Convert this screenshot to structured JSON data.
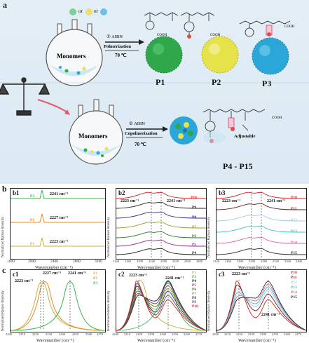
{
  "section_a": {
    "label": "a",
    "flask_label": "Monomers",
    "flask_label_2": "Monomers",
    "or_text_1": "or",
    "or_text_2": "or",
    "step1": {
      "line1": "① AIBN",
      "line2": "Polmerization",
      "temp": "70 ℃"
    },
    "step2": {
      "line1": "① AIBN",
      "line2": "Copolmerization",
      "temp": "70 ℃"
    },
    "products": [
      "P1",
      "P2",
      "P3"
    ],
    "copolymer_label": "P4 - P15",
    "adjustable": "Adjustable",
    "cooh": "COOH",
    "x_n": "n",
    "colors": {
      "p1": "#2ea84a",
      "p2": "#e6e24a",
      "p3": "#2aa7d8",
      "bg": "#dce9f3"
    }
  },
  "section_b": {
    "label": "b",
    "b1": {
      "title": "b1",
      "xlabel": "Wavenumber (cm⁻¹)",
      "ylabel": "Normalized Raman Intensity",
      "xticks": [
        "1600",
        "2000",
        "2400",
        "2800",
        "3200"
      ],
      "annotations": [
        "2241 cm⁻¹",
        "2227 cm⁻¹",
        "2223 cm⁻¹"
      ],
      "series": [
        {
          "name": "P3",
          "color": "#39b54a"
        },
        {
          "name": "P2",
          "color": "#e8882a"
        },
        {
          "name": "P1",
          "color": "#c8b040"
        }
      ]
    },
    "b2": {
      "title": "b2",
      "xlabel": "Wavenumber (cm⁻¹)",
      "ylabel": "Normalized Raman Intensity",
      "xticks": [
        "2120",
        "2160",
        "2200",
        "2240",
        "2280",
        "2320",
        "2360",
        "2400"
      ],
      "annotations": [
        "2223 cm⁻¹",
        "2241 cm⁻¹"
      ],
      "series": [
        {
          "name": "P10",
          "color": "#d81e1e"
        },
        {
          "name": "P9",
          "color": "#222222"
        },
        {
          "name": "P8",
          "color": "#2a2a8a"
        },
        {
          "name": "P7",
          "color": "#9a9a2a"
        },
        {
          "name": "P6",
          "color": "#2a7a2a"
        },
        {
          "name": "P5",
          "color": "#8a2a8a"
        },
        {
          "name": "P4",
          "color": "#1e1e1e"
        }
      ]
    },
    "b3": {
      "title": "b3",
      "xlabel": "Wavenumber (cm⁻¹)",
      "ylabel": "Normalized Raman Intensity",
      "xticks": [
        "2120",
        "2160",
        "2200",
        "2240",
        "2280",
        "2320",
        "2360",
        "2400"
      ],
      "annotations": [
        "2223 cm⁻¹",
        "2241 cm⁻¹"
      ],
      "series": [
        {
          "name": "P10",
          "color": "#d81e1e"
        },
        {
          "name": "P11",
          "color": "#6a1e1e"
        },
        {
          "name": "P12",
          "color": "#a0c8e8"
        },
        {
          "name": "P13",
          "color": "#40c0c0"
        },
        {
          "name": "P14",
          "color": "#e060a0"
        },
        {
          "name": "P15",
          "color": "#2a2a2a"
        }
      ]
    }
  },
  "section_c": {
    "label": "c",
    "c1": {
      "title": "c1",
      "xlabel": "Wavenumber (cm⁻¹)",
      "ylabel": "Normalized Raman Intensity",
      "xticks": [
        "2200",
        "2210",
        "2220",
        "2230",
        "2240",
        "2250",
        "2260",
        "2270"
      ],
      "annotations": [
        "2227 cm⁻¹",
        "2241 cm⁻¹",
        "2223 cm⁻¹"
      ],
      "series": [
        {
          "name": "P1",
          "color": "#c8b040"
        },
        {
          "name": "P2",
          "color": "#e8882a"
        },
        {
          "name": "P3",
          "color": "#39b54a"
        }
      ]
    },
    "c2": {
      "title": "c2",
      "xlabel": "Wavenumber (cm⁻¹)",
      "ylabel": "Normalized Raman Intensity",
      "xticks": [
        "2200",
        "2210",
        "2220",
        "2230",
        "2240",
        "2250",
        "2260",
        "2270"
      ],
      "annotations": [
        "2223 cm⁻¹",
        "2241 cm⁻¹"
      ],
      "series": [
        {
          "name": "P1",
          "color": "#c8b040"
        },
        {
          "name": "P3",
          "color": "#39b54a"
        },
        {
          "name": "P4",
          "color": "#1e1e1e"
        },
        {
          "name": "P5",
          "color": "#8a2a8a"
        },
        {
          "name": "P6",
          "color": "#2a7a2a"
        },
        {
          "name": "P7",
          "color": "#9a9a2a"
        },
        {
          "name": "P8",
          "color": "#2a2a8a"
        },
        {
          "name": "P9",
          "color": "#555555"
        },
        {
          "name": "P10",
          "color": "#d81e1e"
        }
      ]
    },
    "c3": {
      "title": "c3",
      "xlabel": "Wavenumber (cm⁻¹)",
      "ylabel": "Normalized Raman Intensity",
      "xticks": [
        "2200",
        "2210",
        "2220",
        "2230",
        "2240",
        "2250",
        "2260",
        "2270"
      ],
      "annotations": [
        "2223 cm⁻¹",
        "2241 cm⁻¹"
      ],
      "series": [
        {
          "name": "P10",
          "color": "#d81e1e"
        },
        {
          "name": "P11",
          "color": "#6a1e1e"
        },
        {
          "name": "P12",
          "color": "#a0c8e8"
        },
        {
          "name": "P13",
          "color": "#40c0c0"
        },
        {
          "name": "P14",
          "color": "#e060a0"
        },
        {
          "name": "P15",
          "color": "#2a2a2a"
        }
      ]
    }
  }
}
